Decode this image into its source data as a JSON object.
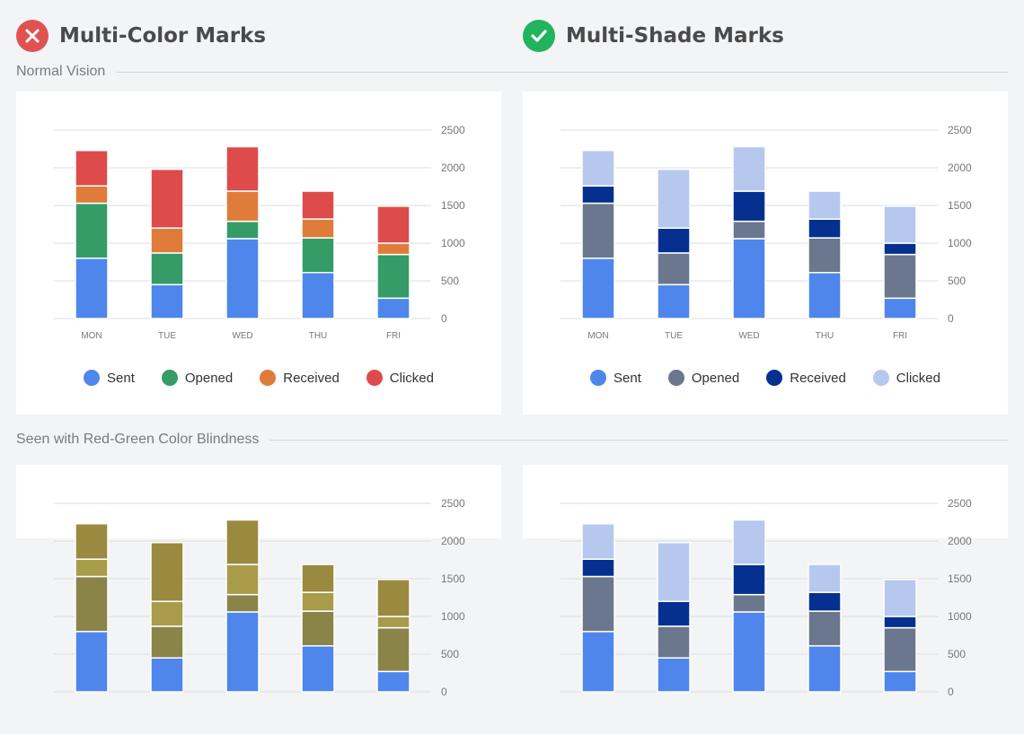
{
  "headers": {
    "left": {
      "title": "Multi-Color Marks",
      "icon": "x-circle-icon",
      "color": "#e05252"
    },
    "right": {
      "title": "Multi-Shade Marks",
      "icon": "check-circle-icon",
      "color": "#22b35e"
    }
  },
  "sections": {
    "normal": "Normal Vision",
    "colorblind": "Seen with Red-Green Color Blindness"
  },
  "palettes": {
    "multi_color": [
      "#4f86ec",
      "#359c67",
      "#e07c3a",
      "#de4b4b"
    ],
    "multi_shade": [
      "#4f86ec",
      "#6b778c",
      "#05308f",
      "#b6c8ee"
    ],
    "multi_color_colorblind": [
      "#4f86ec",
      "#8a8448",
      "#a89c4a",
      "#9a8a3f"
    ],
    "multi_shade_colorblind": [
      "#4f86ec",
      "#6b778c",
      "#05308f",
      "#b6c8ee"
    ]
  },
  "chart_data": [
    {
      "type": "bar",
      "stacked": true,
      "categories": [
        "MON",
        "TUE",
        "WED",
        "THU",
        "FRI"
      ],
      "series": [
        {
          "name": "Sent",
          "values": [
            800,
            450,
            1060,
            610,
            270
          ]
        },
        {
          "name": "Opened",
          "values": [
            730,
            420,
            230,
            460,
            580
          ]
        },
        {
          "name": "Received",
          "values": [
            230,
            330,
            400,
            250,
            150
          ]
        },
        {
          "name": "Clicked",
          "values": [
            470,
            780,
            590,
            370,
            490
          ]
        }
      ],
      "ylim": [
        0,
        2500
      ],
      "yticks": [
        "0",
        "500",
        "1000",
        "1500",
        "2000",
        "2500"
      ],
      "grid": true,
      "legend": "bottom"
    }
  ]
}
